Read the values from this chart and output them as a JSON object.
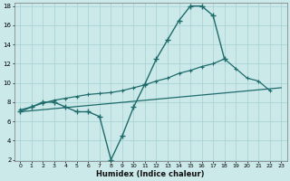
{
  "bg_color": "#cce9ea",
  "grid_color": "#aad4d6",
  "line_color": "#1e6b6b",
  "xlabel": "Humidex (Indice chaleur)",
  "ylim": [
    2,
    18
  ],
  "xlim": [
    -0.5,
    23.5
  ],
  "yticks": [
    2,
    4,
    6,
    8,
    10,
    12,
    14,
    16,
    18
  ],
  "xticks": [
    0,
    1,
    2,
    3,
    4,
    5,
    6,
    7,
    8,
    9,
    10,
    11,
    12,
    13,
    14,
    15,
    16,
    17,
    18,
    19,
    20,
    21,
    22,
    23
  ],
  "curve1_x": [
    0,
    1,
    2,
    3,
    4,
    5,
    6,
    7,
    8,
    9,
    10,
    11,
    12,
    13,
    14,
    15,
    16,
    17,
    18
  ],
  "curve1_y": [
    7.0,
    7.5,
    8.0,
    8.0,
    7.5,
    7.0,
    7.0,
    6.5,
    2.0,
    4.5,
    7.5,
    9.9,
    12.5,
    14.5,
    16.5,
    18.0,
    18.0,
    17.0,
    12.5
  ],
  "curve2_x": [
    0,
    1,
    2,
    3,
    4,
    5,
    6,
    7,
    8,
    9,
    10,
    11,
    12,
    13,
    14,
    15,
    16,
    17,
    18,
    19,
    20,
    21,
    22
  ],
  "curve2_y": [
    7.2,
    7.5,
    7.9,
    8.2,
    8.4,
    8.6,
    8.8,
    8.9,
    9.0,
    9.2,
    9.5,
    9.8,
    10.2,
    10.5,
    11.0,
    11.3,
    11.7,
    12.0,
    12.5,
    11.5,
    10.5,
    10.2,
    9.2
  ],
  "curve3_x": [
    0,
    23
  ],
  "curve3_y": [
    7.0,
    9.5
  ]
}
